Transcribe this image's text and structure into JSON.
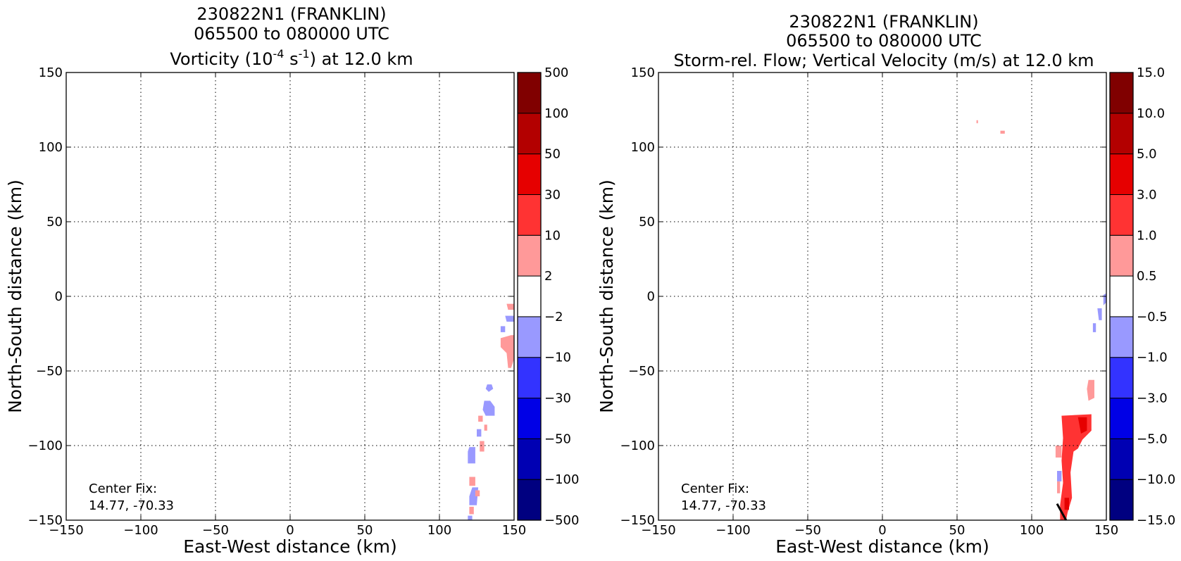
{
  "colors": {
    "white": "#ffffff",
    "blue_light": "#9999ff",
    "blue_mid": "#3333ff",
    "blue": "#0000e6",
    "blue_dark": "#0000b3",
    "navy": "#000080",
    "red_light": "#ff9999",
    "red_mid": "#ff3333",
    "red": "#e60000",
    "red_dark": "#b30000",
    "maroon": "#800000"
  },
  "chart_data": [
    {
      "type": "contourf",
      "title_line1": "230822N1 (FRANKLIN)",
      "title_line2": "065500 to 080000 UTC",
      "title_line3_pre": "Vorticity (10",
      "title_line3_sup1": "-4",
      "title_line3_mid": " s",
      "title_line3_sup2": "-1",
      "title_line3_post": ") at 12.0 km",
      "xlabel": "East-West distance (km)",
      "ylabel": "North-South distance (km)",
      "xlim": [
        -150,
        150
      ],
      "ylim": [
        -150,
        150
      ],
      "xticks": [
        -150,
        -100,
        -50,
        0,
        50,
        100,
        150
      ],
      "yticks": [
        -150,
        -100,
        -50,
        0,
        50,
        100,
        150
      ],
      "xtick_labels": [
        "−150",
        "−100",
        "−50",
        "0",
        "50",
        "100",
        "150"
      ],
      "ytick_labels": [
        "−150",
        "−100",
        "−50",
        "0",
        "50",
        "100",
        "150"
      ],
      "grid": true,
      "annotation_line1": "Center Fix:",
      "annotation_line2": "14.77, -70.33",
      "colorbar_levels": [
        "−500",
        "−100",
        "−50",
        "−30",
        "−10",
        "−2",
        "2",
        "10",
        "30",
        "50",
        "100",
        "500"
      ],
      "colorbar_colors": [
        "navy",
        "blue_dark",
        "blue",
        "blue_mid",
        "blue_light",
        "white",
        "red_light",
        "red_mid",
        "red",
        "red_dark",
        "maroon"
      ],
      "patches": [
        {
          "color": "red_light",
          "points": [
            [
              145,
              -5
            ],
            [
              150,
              -5
            ],
            [
              150,
              -9
            ],
            [
              146,
              -9
            ]
          ]
        },
        {
          "color": "blue_light",
          "points": [
            [
              144,
              -13
            ],
            [
              150,
              -13
            ],
            [
              150,
              -17
            ],
            [
              145,
              -17
            ]
          ]
        },
        {
          "color": "blue_light",
          "points": [
            [
              141,
              -20
            ],
            [
              144,
              -20
            ],
            [
              144,
              -24
            ],
            [
              141,
              -24
            ]
          ]
        },
        {
          "color": "red_light",
          "points": [
            [
              141,
              -28
            ],
            [
              148,
              -26
            ],
            [
              150,
              -26
            ],
            [
              150,
              -42
            ],
            [
              148,
              -48
            ],
            [
              146,
              -48
            ],
            [
              145,
              -38
            ],
            [
              141,
              -34
            ]
          ]
        },
        {
          "color": "blue_light",
          "points": [
            [
              132,
              -59
            ],
            [
              135,
              -59
            ],
            [
              136,
              -62
            ],
            [
              133,
              -64
            ],
            [
              131,
              -62
            ]
          ]
        },
        {
          "color": "blue_light",
          "points": [
            [
              130,
              -70
            ],
            [
              134,
              -70
            ],
            [
              137,
              -74
            ],
            [
              137,
              -80
            ],
            [
              131,
              -80
            ],
            [
              129,
              -76
            ]
          ]
        },
        {
          "color": "red_light",
          "points": [
            [
              126,
              -80
            ],
            [
              129,
              -80
            ],
            [
              129,
              -84
            ],
            [
              126,
              -84
            ]
          ]
        },
        {
          "color": "red_light",
          "points": [
            [
              130,
              -86
            ],
            [
              132,
              -86
            ],
            [
              132,
              -90
            ],
            [
              130,
              -90
            ]
          ]
        },
        {
          "color": "blue_light",
          "points": [
            [
              125,
              -89
            ],
            [
              128,
              -89
            ],
            [
              128,
              -94
            ],
            [
              125,
              -94
            ]
          ]
        },
        {
          "color": "red_light",
          "points": [
            [
              127,
              -97
            ],
            [
              130,
              -97
            ],
            [
              130,
              -104
            ],
            [
              127,
              -104
            ]
          ]
        },
        {
          "color": "blue_light",
          "points": [
            [
              120,
              -101
            ],
            [
              124,
              -101
            ],
            [
              124,
              -112
            ],
            [
              119,
              -112
            ],
            [
              119,
              -104
            ]
          ]
        },
        {
          "color": "red_light",
          "points": [
            [
              120,
              -121
            ],
            [
              124,
              -121
            ],
            [
              124,
              -127
            ],
            [
              120,
              -127
            ]
          ]
        },
        {
          "color": "blue_light",
          "points": [
            [
              122,
              -128
            ],
            [
              126,
              -128
            ],
            [
              125,
              -140
            ],
            [
              120,
              -140
            ],
            [
              120,
              -134
            ]
          ]
        },
        {
          "color": "red_light",
          "points": [
            [
              124,
              -130
            ],
            [
              127,
              -130
            ],
            [
              127,
              -134
            ],
            [
              124,
              -134
            ]
          ]
        },
        {
          "color": "red_light",
          "points": [
            [
              120,
              -141
            ],
            [
              123,
              -141
            ],
            [
              123,
              -146
            ],
            [
              120,
              -146
            ]
          ]
        },
        {
          "color": "blue_light",
          "points": [
            [
              119,
              -147
            ],
            [
              122,
              -147
            ],
            [
              122,
              -150
            ],
            [
              119,
              -150
            ]
          ]
        }
      ],
      "lines": []
    },
    {
      "type": "contourf",
      "title_line1": "230822N1 (FRANKLIN)",
      "title_line2": "065500 to 080000 UTC",
      "title_line3": "Storm-rel. Flow; Vertical Velocity (m/s) at 12.0 km",
      "xlabel": "East-West distance (km)",
      "ylabel": "North-South distance (km)",
      "xlim": [
        -150,
        150
      ],
      "ylim": [
        -150,
        150
      ],
      "xticks": [
        -150,
        -100,
        -50,
        0,
        50,
        100,
        150
      ],
      "yticks": [
        -150,
        -100,
        -50,
        0,
        50,
        100,
        150
      ],
      "xtick_labels": [
        "−150",
        "−100",
        "−50",
        "0",
        "50",
        "100",
        "150"
      ],
      "ytick_labels": [
        "−150",
        "−100",
        "−50",
        "0",
        "50",
        "100",
        "150"
      ],
      "grid": true,
      "annotation_line1": "Center Fix:",
      "annotation_line2": "14.77, -70.33",
      "colorbar_levels": [
        "−15.0",
        "−10.0",
        "−5.0",
        "−3.0",
        "−1.0",
        "−0.5",
        "0.5",
        "1.0",
        "3.0",
        "5.0",
        "10.0",
        "15.0"
      ],
      "colorbar_colors": [
        "navy",
        "blue_dark",
        "blue",
        "blue_mid",
        "blue_light",
        "white",
        "red_light",
        "red_mid",
        "red",
        "red_dark",
        "maroon"
      ],
      "patches": [
        {
          "color": "red_light",
          "points": [
            [
              63,
              118
            ],
            [
              64,
              118
            ],
            [
              64,
              116
            ],
            [
              63,
              116
            ]
          ]
        },
        {
          "color": "red_light",
          "points": [
            [
              79,
              111
            ],
            [
              82,
              111
            ],
            [
              82,
              109
            ],
            [
              79,
              109
            ]
          ]
        },
        {
          "color": "blue_light",
          "points": [
            [
              148,
              1
            ],
            [
              150,
              2
            ],
            [
              150,
              -4
            ],
            [
              148,
              -6
            ]
          ]
        },
        {
          "color": "blue_light",
          "points": [
            [
              144,
              -8
            ],
            [
              147,
              -8
            ],
            [
              147,
              -16
            ],
            [
              145,
              -16
            ]
          ]
        },
        {
          "color": "blue_light",
          "points": [
            [
              141,
              -18
            ],
            [
              143,
              -18
            ],
            [
              143,
              -24
            ],
            [
              141,
              -24
            ]
          ]
        },
        {
          "color": "red_light",
          "points": [
            [
              138,
              -56
            ],
            [
              142,
              -56
            ],
            [
              142,
              -68
            ],
            [
              138,
              -70
            ],
            [
              137,
              -62
            ]
          ]
        },
        {
          "color": "red_mid",
          "points": [
            [
              120,
              -80
            ],
            [
              140,
              -79
            ],
            [
              140,
              -90
            ],
            [
              134,
              -96
            ],
            [
              131,
              -102
            ],
            [
              128,
              -104
            ],
            [
              126,
              -118
            ],
            [
              127,
              -135
            ],
            [
              124,
              -145
            ],
            [
              123,
              -150
            ],
            [
              119,
              -150
            ],
            [
              119,
              -140
            ],
            [
              121,
              -125
            ],
            [
              120,
              -110
            ],
            [
              121,
              -95
            ]
          ]
        },
        {
          "color": "red",
          "points": [
            [
              131,
              -81
            ],
            [
              137,
              -81
            ],
            [
              137,
              -90
            ],
            [
              133,
              -92
            ]
          ]
        },
        {
          "color": "red",
          "points": [
            [
              122,
              -135
            ],
            [
              125,
              -135
            ],
            [
              125,
              -143
            ],
            [
              122,
              -143
            ]
          ]
        },
        {
          "color": "red_light",
          "points": [
            [
              116,
              -100
            ],
            [
              120,
              -100
            ],
            [
              120,
              -108
            ],
            [
              116,
              -108
            ]
          ]
        },
        {
          "color": "blue_light",
          "points": [
            [
              117,
              -117
            ],
            [
              120,
              -117
            ],
            [
              120,
              -124
            ],
            [
              117,
              -124
            ]
          ]
        },
        {
          "color": "red_light",
          "points": [
            [
              117,
              -124
            ],
            [
              119,
              -124
            ],
            [
              119,
              -132
            ],
            [
              117,
              -132
            ]
          ]
        }
      ],
      "lines": [
        {
          "color": "#000000",
          "points": [
            [
              117,
              -139
            ],
            [
              123,
              -150
            ]
          ]
        }
      ]
    }
  ]
}
